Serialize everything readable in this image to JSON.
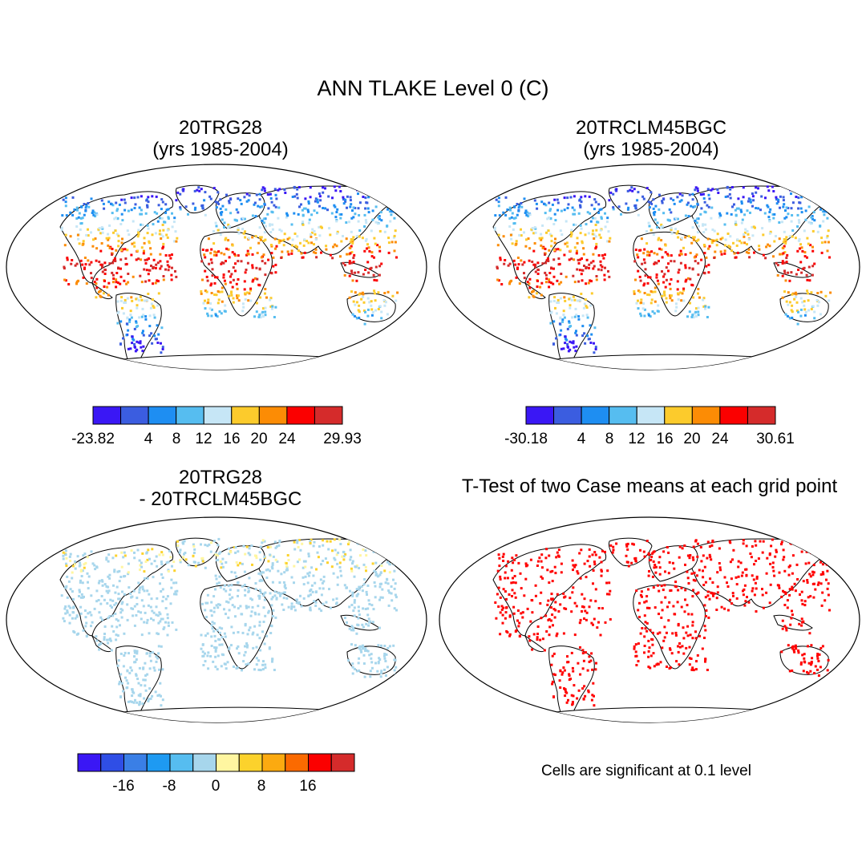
{
  "title": "ANN TLAKE Level 0 (C)",
  "footnote": "Cells are significant at 0.1 level",
  "panels": [
    {
      "line1": "20TRG28",
      "line2": "(yrs 1985-2004)"
    },
    {
      "line1": "20TRCLM45BGC",
      "line2": "(yrs 1985-2004)"
    },
    {
      "line1": "20TRG28",
      "line2": "- 20TRCLM45BGC"
    },
    {
      "line1": "T-Test of two Case means at each grid point",
      "line2": ""
    }
  ],
  "colorbars": [
    {
      "colors": [
        "#3a17f5",
        "#3b5de0",
        "#1e8ef2",
        "#56bdf0",
        "#c6e6f6",
        "#fccb2c",
        "#fc8c05",
        "#fb0000",
        "#d52b2b"
      ],
      "min_label": "-23.82",
      "max_label": "29.93",
      "tick_labels": [
        "4",
        "8",
        "12",
        "16",
        "20",
        "24"
      ]
    },
    {
      "colors": [
        "#3a17f5",
        "#3b5de0",
        "#1e8ef2",
        "#56bdf0",
        "#c6e6f6",
        "#fccb2c",
        "#fc8c05",
        "#fb0000",
        "#d52b2b"
      ],
      "min_label": "-30.18",
      "max_label": "30.61",
      "tick_labels": [
        "4",
        "8",
        "12",
        "16",
        "20",
        "24"
      ]
    },
    {
      "colors": [
        "#3a17f5",
        "#2f4ee6",
        "#3a7fe6",
        "#1e9af2",
        "#56bdf0",
        "#a7d6ec",
        "#fff6a0",
        "#fcd22c",
        "#fcaa10",
        "#fb6a00",
        "#fb0000",
        "#d52b2b"
      ],
      "tick_labels": [
        "-16",
        "-8",
        "0",
        "8",
        "16"
      ]
    }
  ],
  "significance_color": "#ff0000"
}
